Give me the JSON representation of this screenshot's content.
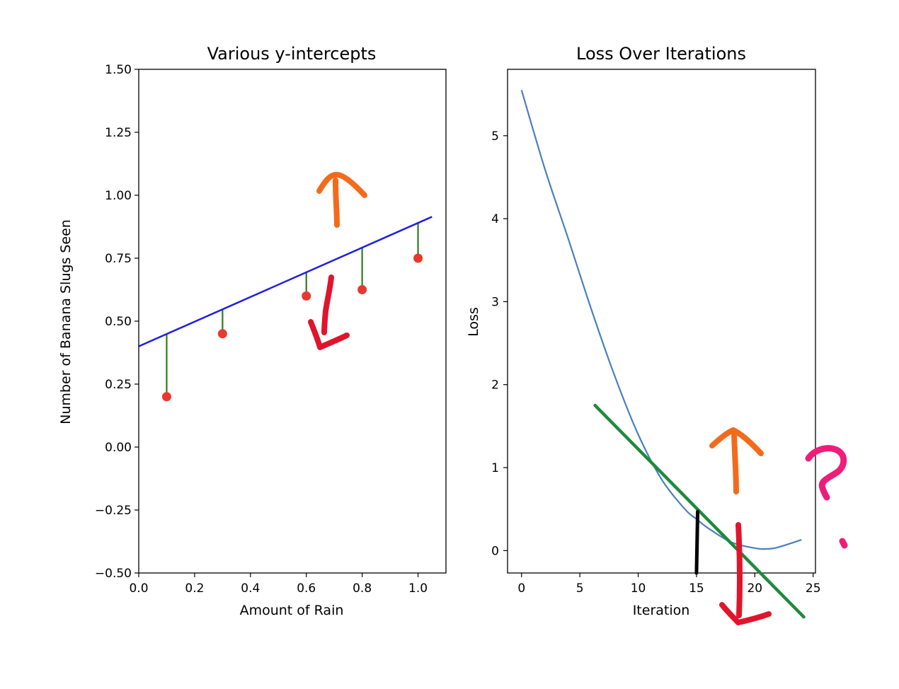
{
  "chart_data": [
    {
      "type": "scatter",
      "title": "Various y-intercepts",
      "xlabel": "Amount of Rain",
      "ylabel": "Number of Banana Slugs Seen",
      "xlim": [
        0.0,
        1.1
      ],
      "ylim": [
        -0.5,
        1.5
      ],
      "xticks": [
        "0.0",
        "0.2",
        "0.4",
        "0.6",
        "0.8",
        "1.0"
      ],
      "yticks": [
        "−0.50",
        "−0.25",
        "0.00",
        "0.25",
        "0.50",
        "0.75",
        "1.00",
        "1.25",
        "1.50"
      ],
      "points": {
        "x": [
          0.1,
          0.3,
          0.6,
          0.8,
          1.0
        ],
        "y": [
          0.2,
          0.45,
          0.6,
          0.625,
          0.75
        ]
      },
      "fit_line": {
        "intercept": 0.4,
        "slope": 0.49,
        "x_range": [
          0.0,
          1.05
        ]
      },
      "colors": {
        "points": "#e8392e",
        "line": "#1f1fe6",
        "residuals": "#2e7d17"
      }
    },
    {
      "type": "line",
      "title": "Loss Over Iterations",
      "xlabel": "Iteration",
      "ylabel": "Loss",
      "xlim": [
        -1.2,
        25.2
      ],
      "ylim": [
        -0.27,
        5.8
      ],
      "xticks": [
        "0",
        "5",
        "10",
        "15",
        "20",
        "25"
      ],
      "yticks": [
        "0",
        "1",
        "2",
        "3",
        "4",
        "5"
      ],
      "series": [
        {
          "x": [
            0,
            2,
            4,
            6,
            8,
            10,
            12,
            14,
            15,
            16,
            18,
            20,
            21,
            22,
            24
          ],
          "values": [
            5.55,
            4.6,
            3.76,
            2.9,
            2.1,
            1.4,
            0.86,
            0.5,
            0.38,
            0.27,
            0.1,
            0.03,
            0.02,
            0.04,
            0.13
          ]
        }
      ],
      "tangent_line": {
        "x_range": [
          6.3,
          24.2
        ],
        "y_range": [
          1.75,
          -0.8
        ]
      },
      "colors": {
        "series": "#4a7fbf",
        "tangent": "#1e8a3c",
        "marker": "#000000"
      }
    }
  ],
  "annotations": {
    "colors": {
      "arrow_up": "#f26b1d",
      "arrow_down": "#e0152c",
      "question_mark": "#ee1d7a"
    }
  }
}
